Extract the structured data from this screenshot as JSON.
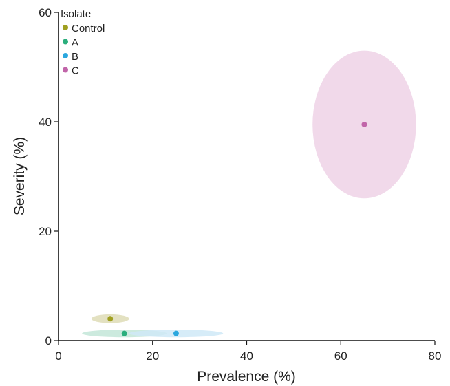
{
  "chart_data": {
    "type": "scatter",
    "title": "",
    "xlabel": "Prevalence (%)",
    "ylabel": "Severity (%)",
    "xlim": [
      0,
      80
    ],
    "ylim": [
      0,
      60
    ],
    "xticks": [
      0,
      20,
      40,
      60,
      80
    ],
    "yticks": [
      0,
      20,
      40,
      60
    ],
    "grid": false,
    "legend": {
      "title": "Isolate",
      "placement": "top-left"
    },
    "series": [
      {
        "name": "Control",
        "x": 11,
        "y": 4,
        "x_spread": 4,
        "y_spread": 0.8,
        "color": "#a0a020",
        "fill": "#dedcb6"
      },
      {
        "name": "A",
        "x": 14,
        "y": 1.3,
        "x_spread": 9,
        "y_spread": 0.7,
        "color": "#2bae7c",
        "fill": "#c3e6d8"
      },
      {
        "name": "B",
        "x": 25,
        "y": 1.3,
        "x_spread": 10,
        "y_spread": 0.7,
        "color": "#2aa7de",
        "fill": "#cfe9f7"
      },
      {
        "name": "C",
        "x": 65,
        "y": 39.5,
        "x_spread": 11,
        "y_spread": 13.5,
        "color": "#c165a9",
        "fill": "#eed2e6"
      }
    ]
  }
}
